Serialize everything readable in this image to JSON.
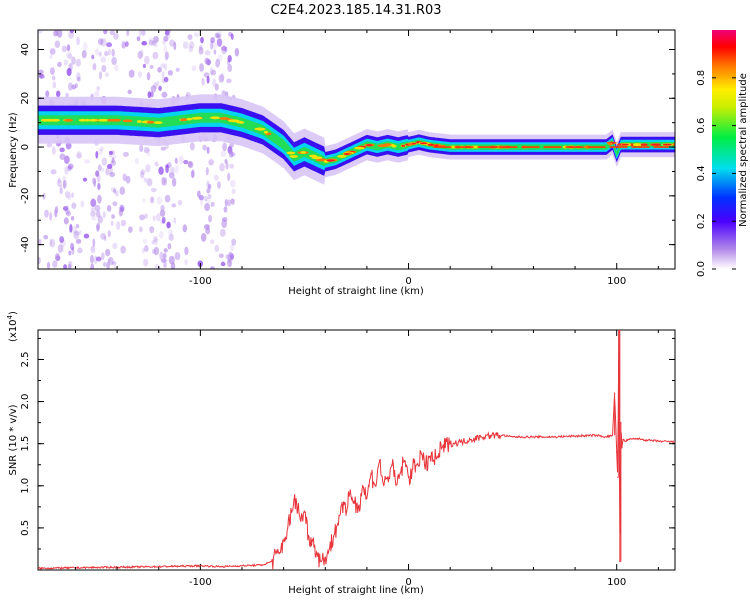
{
  "title": "C2E4.2023.185.14.31.R03",
  "chart_data": [
    {
      "type": "heatmap",
      "title": "C2E4.2023.185.14.31.R03",
      "xlabel": "Height of straight line (km)",
      "ylabel": "Frequency (Hz)",
      "xlim": [
        -178,
        128
      ],
      "ylim": [
        -50,
        48
      ],
      "x_ticks": [
        -100,
        0,
        100
      ],
      "x_tick_labels": [
        "-100",
        "0",
        "100"
      ],
      "y_ticks": [
        -40,
        -20,
        0,
        20,
        40
      ],
      "y_tick_labels": [
        "-40",
        "-20",
        "0",
        "20",
        "40"
      ],
      "ridge": {
        "name": "dominant frequency track",
        "x": [
          -178,
          -160,
          -140,
          -120,
          -100,
          -90,
          -80,
          -70,
          -65,
          -60,
          -55,
          -50,
          -45,
          -40,
          -35,
          -30,
          -25,
          -20,
          -15,
          -10,
          -5,
          0,
          5,
          10,
          20,
          40,
          60,
          80,
          95,
          98,
          100,
          102,
          110,
          128
        ],
        "y": [
          11,
          11,
          11,
          10,
          12,
          12,
          10,
          7,
          4,
          1,
          -4,
          -2,
          -4,
          -6,
          -5,
          -3,
          -1,
          1,
          0,
          1,
          0,
          1,
          2,
          1,
          0,
          0,
          0,
          0,
          0,
          2,
          -3,
          1,
          1,
          1
        ],
        "value": 0.9
      },
      "colorbar": {
        "label": "Normalized spectral amplitude",
        "range": [
          0.0,
          1.0
        ],
        "ticks": [
          0.0,
          0.2,
          0.4,
          0.6,
          0.8
        ],
        "tick_labels": [
          "0.0",
          "0.2",
          "0.4",
          "0.6",
          "0.8"
        ],
        "colormap": "rainbow (white → violet → blue → cyan → green → yellow → orange → red → magenta)"
      }
    },
    {
      "type": "line",
      "xlabel": "Height of straight line (km)",
      "ylabel": "SNR (10 * v/v)",
      "y_multiplier": "(x10",
      "y_multiplier_exp": "4",
      "y_multiplier_close": ")",
      "xlim": [
        -178,
        128
      ],
      "ylim": [
        0,
        2.85
      ],
      "x_ticks": [
        -100,
        0,
        100
      ],
      "x_tick_labels": [
        "-100",
        "0",
        "100"
      ],
      "y_ticks": [
        0.5,
        1.0,
        1.5,
        2.0,
        2.5
      ],
      "y_tick_labels": [
        "0.5",
        "1.0",
        "1.5",
        "2.0",
        "2.5"
      ],
      "color": "#e8343a",
      "series": [
        {
          "name": "SNR",
          "x": [
            -178,
            -150,
            -120,
            -100,
            -90,
            -80,
            -70,
            -66,
            -62,
            -60,
            -58,
            -56,
            -54,
            -52,
            -50,
            -48,
            -46,
            -44,
            -42,
            -40,
            -38,
            -36,
            -34,
            -32,
            -30,
            -28,
            -26,
            -24,
            -22,
            -20,
            -18,
            -16,
            -14,
            -12,
            -10,
            -8,
            -6,
            -4,
            -2,
            0,
            2,
            4,
            6,
            8,
            10,
            12,
            14,
            16,
            20,
            25,
            30,
            35,
            40,
            45,
            50,
            60,
            70,
            80,
            90,
            95,
            98,
            99,
            100,
            100.5,
            101,
            101.5,
            102,
            102.5,
            103,
            104,
            106,
            110,
            115,
            120,
            128
          ],
          "y": [
            0.02,
            0.03,
            0.04,
            0.05,
            0.04,
            0.05,
            0.06,
            0.1,
            0.2,
            0.35,
            0.5,
            0.7,
            0.85,
            0.6,
            0.7,
            0.4,
            0.35,
            0.2,
            0.1,
            0.15,
            0.25,
            0.4,
            0.55,
            0.8,
            0.65,
            0.95,
            0.8,
            0.75,
            1.0,
            0.85,
            1.15,
            1.0,
            1.3,
            1.0,
            1.1,
            1.25,
            1.0,
            1.15,
            1.3,
            1.1,
            1.2,
            1.25,
            1.4,
            1.2,
            1.35,
            1.3,
            1.35,
            1.45,
            1.5,
            1.52,
            1.55,
            1.58,
            1.6,
            1.6,
            1.58,
            1.58,
            1.58,
            1.59,
            1.6,
            1.58,
            1.6,
            2.1,
            1.4,
            1.1,
            2.85,
            0.1,
            1.75,
            1.45,
            1.55,
            1.53,
            1.55,
            1.56,
            1.54,
            1.53,
            1.52
          ]
        }
      ]
    }
  ]
}
